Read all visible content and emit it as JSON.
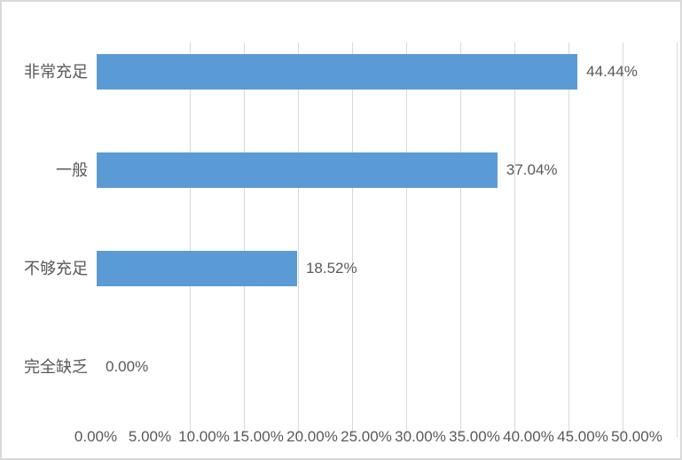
{
  "chart_data": {
    "type": "bar",
    "orientation": "horizontal",
    "title": "",
    "xlabel": "",
    "ylabel": "",
    "categories": [
      "非常充足",
      "一般",
      "不够充足",
      "完全缺乏"
    ],
    "values": [
      44.44,
      37.04,
      18.52,
      0.0
    ],
    "data_labels": [
      "44.44%",
      "37.04%",
      "18.52%",
      "0.00%"
    ],
    "x_tick_labels": [
      "0.00%",
      "5.00%",
      "10.00%",
      "15.00%",
      "20.00%",
      "25.00%",
      "30.00%",
      "35.00%",
      "40.00%",
      "45.00%",
      "50.00%"
    ],
    "xlim": [
      0,
      50
    ],
    "grid": true,
    "legend": false,
    "colors": {
      "bar": "#5B9BD5",
      "gridline": "#D9D9D9",
      "text": "#595959",
      "border": "#D9D9D9",
      "background": "#FFFFFF"
    }
  }
}
